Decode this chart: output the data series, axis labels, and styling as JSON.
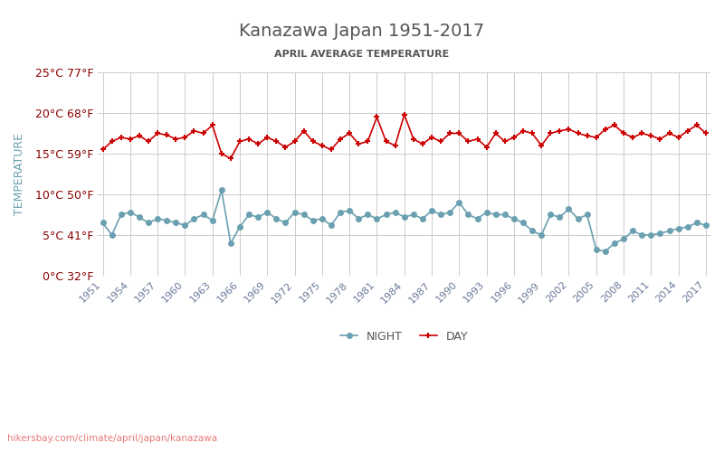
{
  "title": "Kanazawa Japan 1951-2017",
  "subtitle": "APRIL AVERAGE TEMPERATURE",
  "ylabel": "TEMPERATURE",
  "watermark": "hikersbay.com/climate/april/japan/kanazawa",
  "years": [
    1951,
    1952,
    1953,
    1954,
    1955,
    1956,
    1957,
    1958,
    1959,
    1960,
    1961,
    1962,
    1963,
    1964,
    1965,
    1966,
    1967,
    1968,
    1969,
    1970,
    1971,
    1972,
    1973,
    1974,
    1975,
    1976,
    1977,
    1978,
    1979,
    1980,
    1981,
    1982,
    1983,
    1984,
    1985,
    1986,
    1987,
    1988,
    1989,
    1990,
    1991,
    1992,
    1993,
    1994,
    1995,
    1996,
    1997,
    1998,
    1999,
    2000,
    2001,
    2002,
    2003,
    2004,
    2005,
    2006,
    2007,
    2008,
    2009,
    2010,
    2011,
    2012,
    2013,
    2014,
    2015,
    2016,
    2017
  ],
  "day_temps": [
    15.5,
    16.5,
    17.0,
    16.8,
    17.2,
    16.5,
    17.5,
    17.3,
    16.8,
    17.0,
    17.8,
    17.5,
    18.5,
    15.0,
    14.4,
    16.5,
    16.8,
    16.2,
    17.0,
    16.5,
    15.8,
    16.5,
    17.8,
    16.5,
    16.0,
    15.5,
    16.8,
    17.5,
    16.2,
    16.5,
    19.5,
    16.5,
    16.0,
    19.8,
    16.8,
    16.2,
    17.0,
    16.5,
    17.5,
    17.5,
    16.5,
    16.8,
    15.8,
    17.5,
    16.5,
    17.0,
    17.8,
    17.5,
    16.0,
    17.5,
    17.8,
    18.0,
    17.5,
    17.2,
    17.0,
    18.0,
    18.5,
    17.5,
    17.0,
    17.5,
    17.2,
    16.8,
    17.5,
    17.0,
    17.8,
    18.5,
    17.5
  ],
  "night_temps": [
    6.5,
    5.0,
    7.5,
    7.8,
    7.2,
    6.5,
    7.0,
    6.8,
    6.5,
    6.2,
    7.0,
    7.5,
    6.8,
    10.5,
    4.0,
    6.0,
    7.5,
    7.2,
    7.8,
    7.0,
    6.5,
    7.8,
    7.5,
    6.8,
    7.0,
    6.2,
    7.8,
    8.0,
    7.0,
    7.5,
    7.0,
    7.5,
    7.8,
    7.2,
    7.5,
    7.0,
    8.0,
    7.5,
    7.8,
    9.0,
    7.5,
    7.0,
    7.8,
    7.5,
    7.5,
    7.0,
    6.5,
    5.5,
    5.0,
    7.5,
    7.2,
    8.2,
    7.0,
    7.5,
    3.2,
    3.0,
    4.0,
    4.5,
    5.5,
    5.0,
    5.0,
    5.2,
    5.5,
    5.8,
    6.0,
    6.5,
    6.2
  ],
  "day_color": "#cc0000",
  "night_color": "#6aa0b0",
  "title_color": "#555555",
  "subtitle_color": "#555555",
  "ylabel_color": "#6aa0b0",
  "ytick_color": "#880000",
  "xtick_color": "#6a7a9a",
  "grid_color": "#cccccc",
  "bg_color": "#ffffff",
  "ylim": [
    0,
    25
  ],
  "yticks_c": [
    0,
    5,
    10,
    15,
    20,
    25
  ],
  "ytick_labels": [
    "0°C 32°F",
    "5°C 41°F",
    "10°C 50°F",
    "15°C 59°F",
    "20°C 68°F",
    "25°C 77°F"
  ],
  "xtick_years": [
    1951,
    1954,
    1957,
    1960,
    1963,
    1966,
    1969,
    1972,
    1975,
    1978,
    1981,
    1984,
    1987,
    1990,
    1993,
    1996,
    1999,
    2002,
    2005,
    2008,
    2011,
    2014,
    2017
  ],
  "watermark_color": "#e87878",
  "legend_night": "NIGHT",
  "legend_day": "DAY"
}
